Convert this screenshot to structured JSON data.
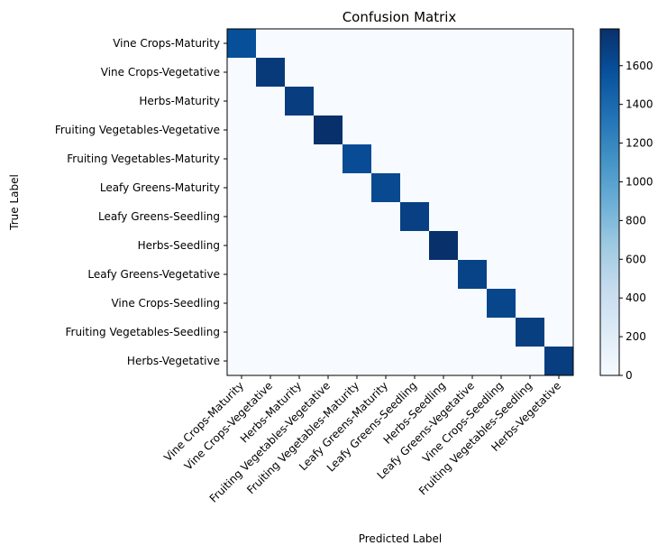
{
  "chart_data": {
    "type": "heatmap",
    "title": "Confusion Matrix",
    "xlabel": "Predicted Label",
    "ylabel": "True Label",
    "categories": [
      "Vine Crops-Maturity",
      "Vine Crops-Vegetative",
      "Herbs-Maturity",
      "Fruiting Vegetables-Vegetative",
      "Fruiting Vegetables-Maturity",
      "Leafy Greens-Maturity",
      "Leafy Greens-Seedling",
      "Herbs-Seedling",
      "Leafy Greens-Vegetative",
      "Vine Crops-Seedling",
      "Fruiting Vegetables-Seedling",
      "Herbs-Vegetative"
    ],
    "diagonal_values": [
      1580,
      1720,
      1700,
      1790,
      1600,
      1620,
      1680,
      1800,
      1660,
      1640,
      1690,
      1700
    ],
    "off_diagonal_value": 0,
    "colorbar": {
      "min": 0,
      "max": 1790,
      "ticks": [
        0,
        200,
        400,
        600,
        800,
        1000,
        1200,
        1400,
        1600
      ],
      "colormap": "Blues",
      "low_color": "#f7fbff",
      "high_color": "#08306b"
    },
    "grid": false
  }
}
